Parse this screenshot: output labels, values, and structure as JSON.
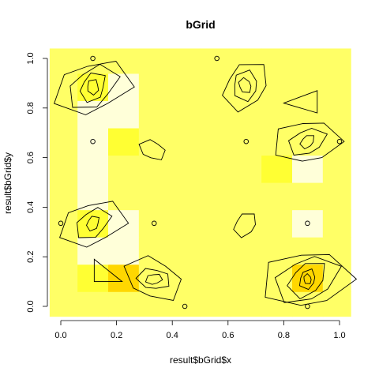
{
  "chart_data": {
    "type": "heatmap",
    "title": "bGrid",
    "xlabel": "result$bGrid$x",
    "ylabel": "result$bGrid$y",
    "xlim": [
      -0.04,
      1.04
    ],
    "ylim": [
      -0.04,
      1.04
    ],
    "x_ticks": [
      "0.0",
      "0.2",
      "0.4",
      "0.6",
      "0.8",
      "1.0"
    ],
    "y_ticks": [
      "0.0",
      "0.2",
      "0.4",
      "0.6",
      "0.8",
      "1.0"
    ],
    "grid": false,
    "palette": [
      "#ffff66",
      "#ffffd9",
      "#ffff33",
      "#ffd700",
      "#ffa500",
      "#ff0000"
    ],
    "x_breaks": [
      -0.04,
      0.06,
      0.17,
      0.28,
      0.39,
      0.5,
      0.61,
      0.72,
      0.83,
      0.94,
      1.04
    ],
    "y_breaks": [
      -0.04,
      0.06,
      0.17,
      0.28,
      0.39,
      0.5,
      0.61,
      0.72,
      0.83,
      0.94,
      1.04
    ],
    "levels": [
      [
        0,
        0,
        0,
        0,
        0,
        0,
        0,
        0,
        0,
        0
      ],
      [
        0,
        2,
        3,
        0,
        0,
        0,
        0,
        0,
        3,
        0
      ],
      [
        0,
        1,
        1,
        0,
        0,
        0,
        0,
        0,
        0,
        0
      ],
      [
        0,
        2,
        1,
        0,
        0,
        0,
        0,
        0,
        1,
        0
      ],
      [
        0,
        1,
        0,
        0,
        0,
        0,
        0,
        0,
        0,
        0
      ],
      [
        0,
        1,
        0,
        0,
        0,
        0,
        0,
        2,
        1,
        0
      ],
      [
        0,
        1,
        2,
        0,
        0,
        0,
        0,
        0,
        0,
        0
      ],
      [
        0,
        1,
        1,
        0,
        0,
        0,
        0,
        0,
        0,
        0
      ],
      [
        0,
        2,
        1,
        0,
        0,
        0,
        0,
        0,
        0,
        0
      ],
      [
        0,
        0,
        0,
        0,
        0,
        0,
        0,
        0,
        0,
        0
      ]
    ],
    "points": [
      {
        "x": 0.115,
        "y": 1.0
      },
      {
        "x": 0.56,
        "y": 1.0
      },
      {
        "x": 0.115,
        "y": 0.665
      },
      {
        "x": 0.665,
        "y": 0.665
      },
      {
        "x": 1.0,
        "y": 0.665
      },
      {
        "x": 0.0,
        "y": 0.335
      },
      {
        "x": 0.335,
        "y": 0.335
      },
      {
        "x": 0.885,
        "y": 0.335
      },
      {
        "x": 0.445,
        "y": 0.0
      },
      {
        "x": 0.885,
        "y": 0.0
      }
    ]
  }
}
